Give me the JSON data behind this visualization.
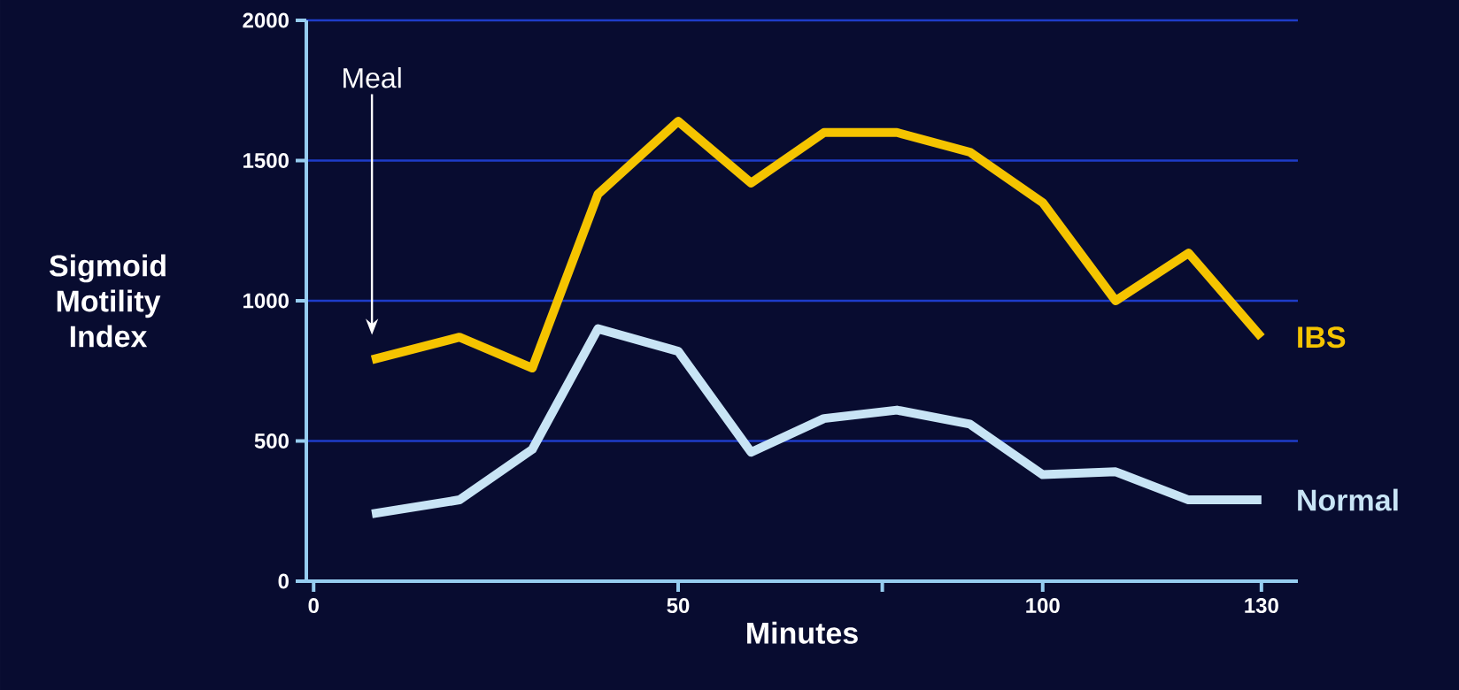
{
  "chart_data": {
    "type": "line",
    "xlabel": "Minutes",
    "ylabel": "Sigmoid Motility Index",
    "x": [
      8,
      20,
      30,
      39,
      50,
      60,
      70,
      80,
      90,
      100,
      110,
      120,
      130
    ],
    "series": [
      {
        "name": "IBS",
        "color": "#f5c400",
        "values": [
          790,
          870,
          760,
          1380,
          1640,
          1420,
          1600,
          1600,
          1530,
          1350,
          1000,
          1170,
          870
        ]
      },
      {
        "name": "Normal",
        "color": "#c8e4f5",
        "values": [
          240,
          290,
          470,
          900,
          820,
          460,
          580,
          610,
          560,
          380,
          390,
          290,
          290
        ]
      }
    ],
    "xlim": [
      -1,
      135
    ],
    "ylim": [
      0,
      2000
    ],
    "xticks": [
      0,
      50,
      {
        "value": 78,
        "label": null
      },
      100,
      130
    ],
    "yticks": [
      0,
      500,
      1000,
      1500,
      2000
    ],
    "grid": "y",
    "legend": false,
    "marker": "none",
    "line_style": "solid",
    "annotations": [
      "Meal"
    ]
  }
}
